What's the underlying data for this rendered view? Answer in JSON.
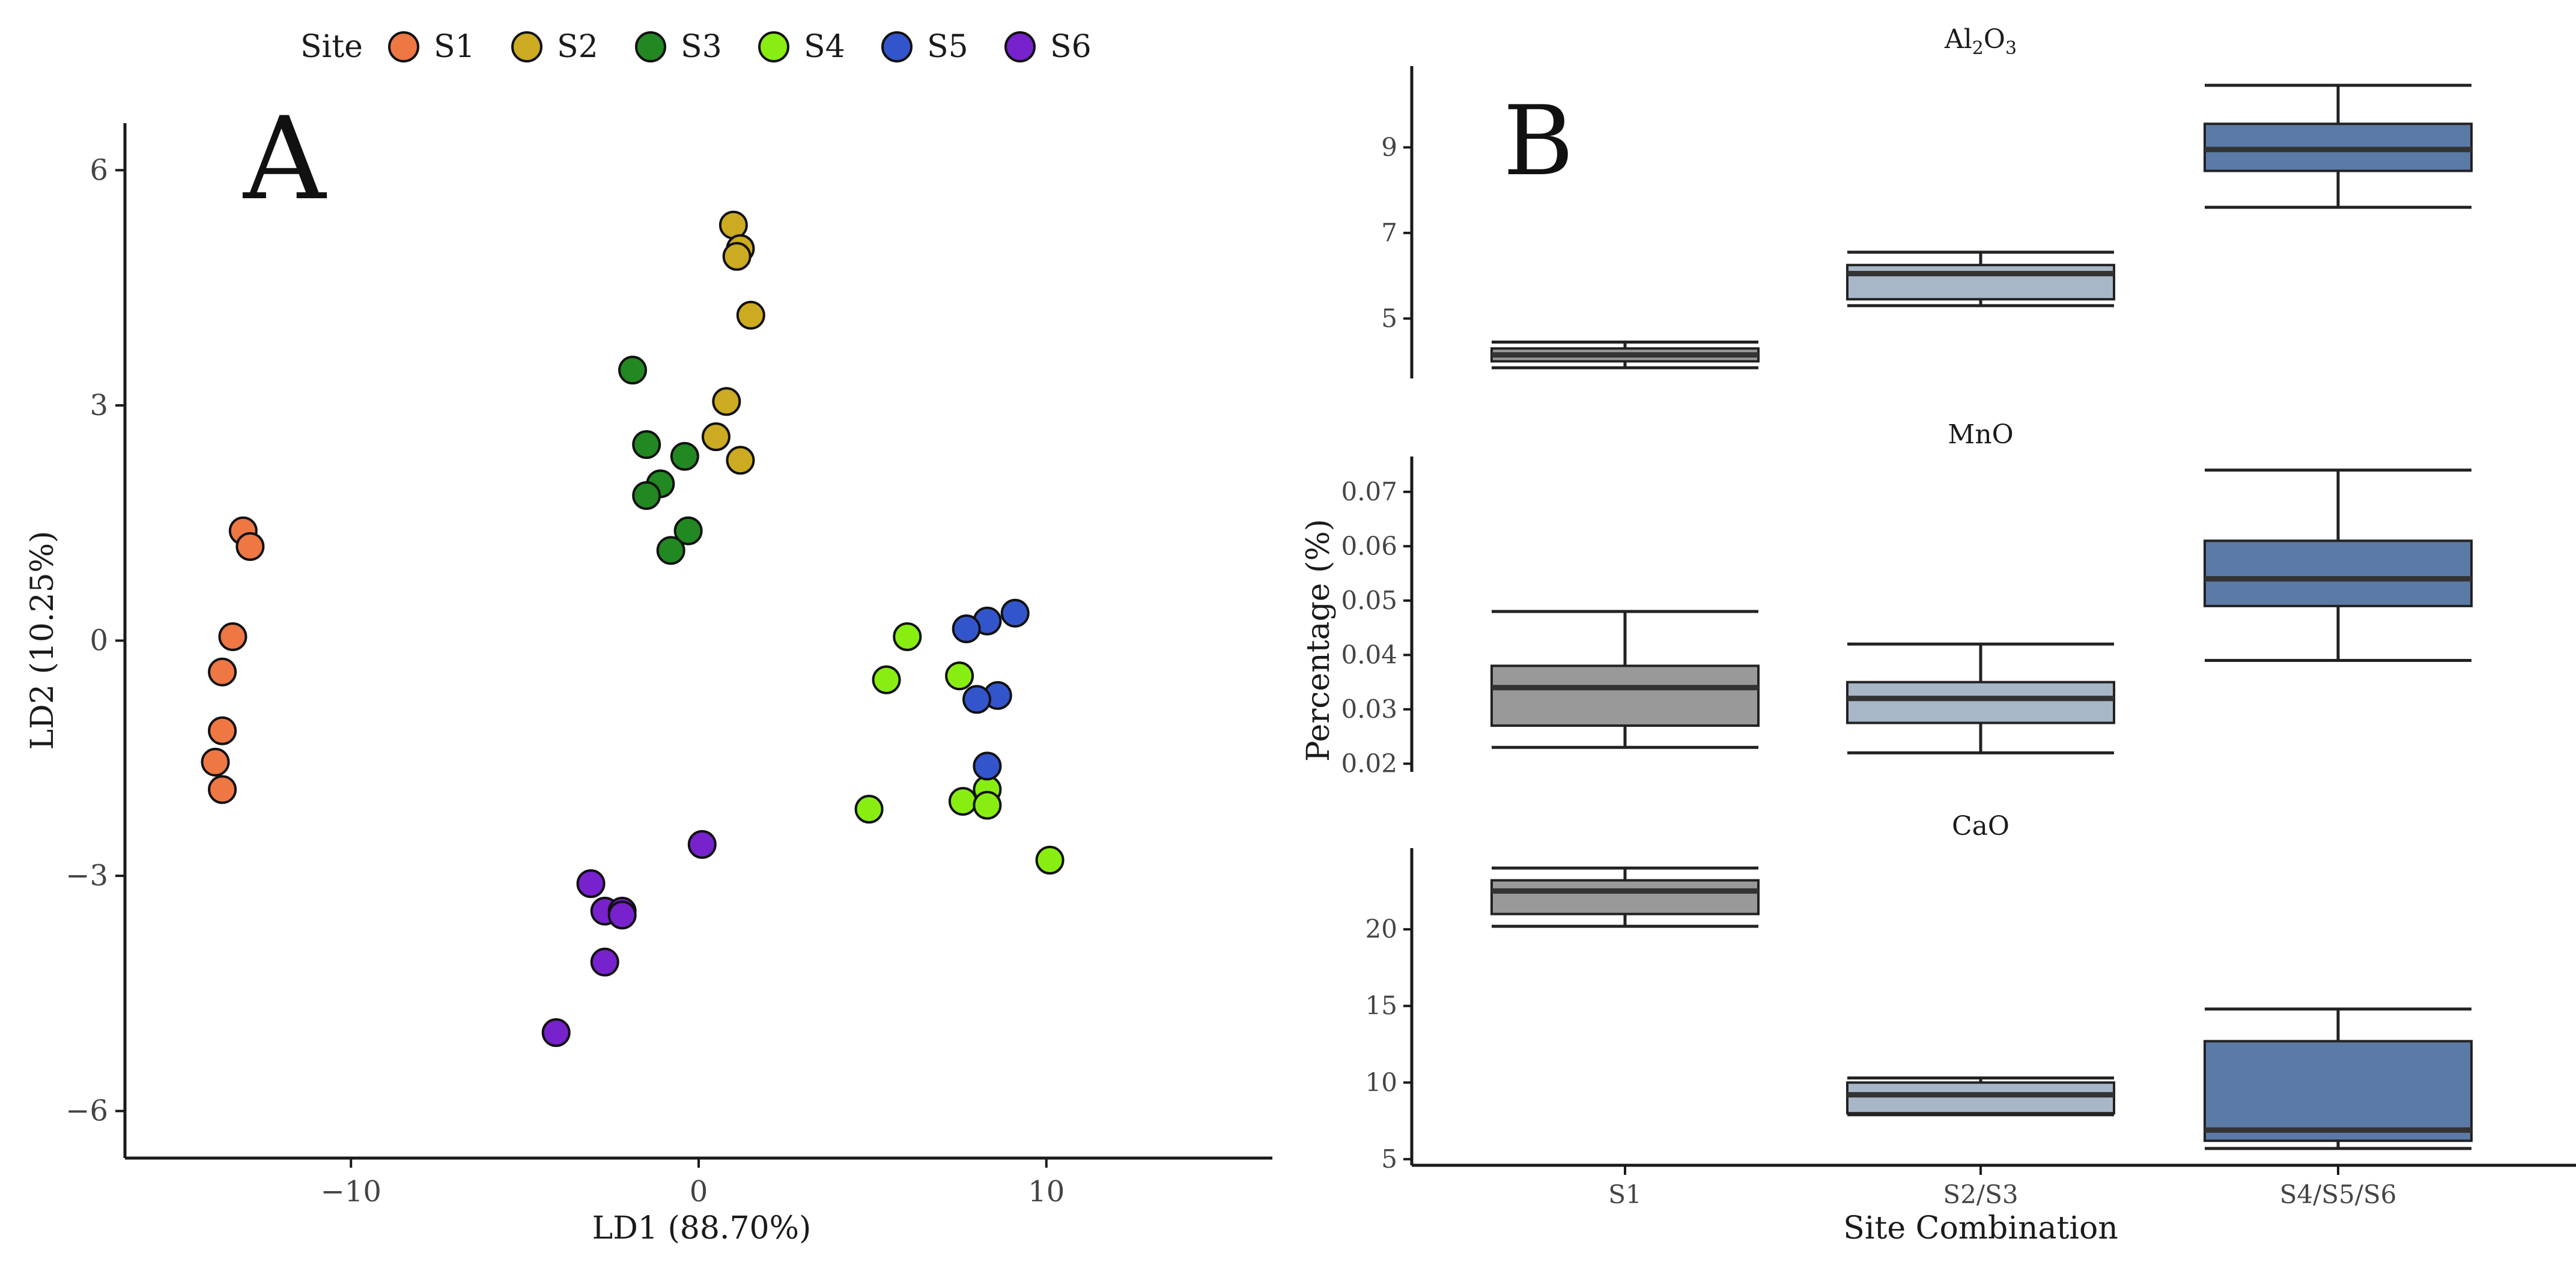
{
  "panel_labels": {
    "a": "A",
    "b": "B"
  },
  "legend": {
    "title": "Site",
    "entries": [
      {
        "label": "S1",
        "color": "#ee7744"
      },
      {
        "label": "S2",
        "color": "#ccaa22"
      },
      {
        "label": "S3",
        "color": "#228822"
      },
      {
        "label": "S4",
        "color": "#88ee11"
      },
      {
        "label": "S5",
        "color": "#3355cc"
      },
      {
        "label": "S6",
        "color": "#7722cc"
      }
    ]
  },
  "chart_data": [
    {
      "type": "scatter",
      "xlabel": "LD1 (88.70%)",
      "ylabel": "LD2 (10.25%)",
      "xlim": [
        -16.5,
        16.5
      ],
      "ylim": [
        -6.6,
        6.6
      ],
      "xticks": [
        -10,
        0,
        10
      ],
      "xtick_labels": [
        "−10",
        "0",
        "10"
      ],
      "yticks": [
        -6,
        -3,
        0,
        3,
        6
      ],
      "ytick_labels": [
        "−6",
        "−3",
        "0",
        "3",
        "6"
      ],
      "grid": false,
      "legend_position": "top",
      "series": [
        {
          "name": "S1",
          "color": "#ee7744",
          "points": [
            [
              -13.1,
              1.4
            ],
            [
              -12.9,
              1.2
            ],
            [
              -13.4,
              0.05
            ],
            [
              -13.7,
              -0.4
            ],
            [
              -13.7,
              -1.15
            ],
            [
              -13.9,
              -1.55
            ],
            [
              -13.7,
              -1.9
            ]
          ]
        },
        {
          "name": "S2",
          "color": "#ccaa22",
          "points": [
            [
              1.0,
              5.3
            ],
            [
              1.2,
              5.0
            ],
            [
              1.1,
              4.9
            ],
            [
              1.5,
              4.15
            ],
            [
              0.8,
              3.05
            ],
            [
              0.5,
              2.6
            ],
            [
              1.2,
              2.3
            ]
          ]
        },
        {
          "name": "S3",
          "color": "#228822",
          "points": [
            [
              -1.9,
              3.45
            ],
            [
              -1.5,
              2.5
            ],
            [
              -0.4,
              2.35
            ],
            [
              -1.1,
              2.0
            ],
            [
              -1.5,
              1.85
            ],
            [
              -0.3,
              1.4
            ],
            [
              -0.8,
              1.15
            ]
          ]
        },
        {
          "name": "S4",
          "color": "#88ee11",
          "points": [
            [
              6.0,
              0.05
            ],
            [
              5.4,
              -0.5
            ],
            [
              7.5,
              -0.45
            ],
            [
              7.6,
              -2.05
            ],
            [
              8.3,
              -1.9
            ],
            [
              8.3,
              -2.1
            ],
            [
              4.9,
              -2.15
            ],
            [
              10.1,
              -2.8
            ]
          ]
        },
        {
          "name": "S5",
          "color": "#3355cc",
          "points": [
            [
              9.1,
              0.35
            ],
            [
              8.3,
              0.25
            ],
            [
              7.7,
              0.15
            ],
            [
              8.6,
              -0.7
            ],
            [
              8.0,
              -0.75
            ],
            [
              8.3,
              -1.6
            ]
          ]
        },
        {
          "name": "S6",
          "color": "#7722cc",
          "points": [
            [
              0.1,
              -2.6
            ],
            [
              -3.1,
              -3.1
            ],
            [
              -2.7,
              -3.45
            ],
            [
              -2.2,
              -3.45
            ],
            [
              -2.2,
              -3.5
            ],
            [
              -2.7,
              -4.1
            ],
            [
              -4.1,
              -5.0
            ]
          ]
        }
      ]
    },
    {
      "type": "box",
      "xlabel": "Site Combination",
      "ylabel": "Percentage (%)",
      "categories": [
        "S1",
        "S2/S3",
        "S4/S5/S6"
      ],
      "box_colors": [
        "#999999",
        "#a7b7c8",
        "#5b7aa6"
      ],
      "grid": false,
      "facets": [
        {
          "title_base": "Al",
          "title_sub1": "2",
          "title_mid": "O",
          "title_sub2": "3",
          "ylim": [
            3.6,
            10.9
          ],
          "yticks": [
            5,
            7,
            9
          ],
          "ytick_labels": [
            "5",
            "7",
            "9"
          ],
          "boxes": [
            {
              "category": "S1",
              "min": 3.85,
              "q1": 4.0,
              "median": 4.15,
              "q3": 4.3,
              "max": 4.45
            },
            {
              "category": "S2/S3",
              "min": 5.3,
              "q1": 5.45,
              "median": 6.05,
              "q3": 6.25,
              "max": 6.55
            },
            {
              "category": "S4/S5/S6",
              "min": 7.6,
              "q1": 8.45,
              "median": 8.95,
              "q3": 9.55,
              "max": 10.45
            }
          ]
        },
        {
          "title_base": "MnO",
          "ylim": [
            0.0185,
            0.0765
          ],
          "yticks": [
            0.02,
            0.03,
            0.04,
            0.05,
            0.06,
            0.07
          ],
          "ytick_labels": [
            "0.02",
            "0.03",
            "0.04",
            "0.05",
            "0.06",
            "0.07"
          ],
          "boxes": [
            {
              "category": "S1",
              "min": 0.023,
              "q1": 0.027,
              "median": 0.034,
              "q3": 0.038,
              "max": 0.048
            },
            {
              "category": "S2/S3",
              "min": 0.022,
              "q1": 0.0275,
              "median": 0.032,
              "q3": 0.035,
              "max": 0.042
            },
            {
              "category": "S4/S5/S6",
              "min": 0.039,
              "q1": 0.049,
              "median": 0.054,
              "q3": 0.061,
              "max": 0.074
            }
          ]
        },
        {
          "title_base": "CaO",
          "ylim": [
            4.6,
            25.3
          ],
          "yticks": [
            5,
            10,
            15,
            20
          ],
          "ytick_labels": [
            "5",
            "10",
            "15",
            "20"
          ],
          "boxes": [
            {
              "category": "S1",
              "min": 20.2,
              "q1": 21.0,
              "median": 22.5,
              "q3": 23.2,
              "max": 24.0
            },
            {
              "category": "S2/S3",
              "min": 7.9,
              "q1": 8.0,
              "median": 9.2,
              "q3": 10.0,
              "max": 10.3
            },
            {
              "category": "S4/S5/S6",
              "min": 5.7,
              "q1": 6.2,
              "median": 6.9,
              "q3": 12.7,
              "max": 14.8
            }
          ]
        }
      ]
    }
  ]
}
